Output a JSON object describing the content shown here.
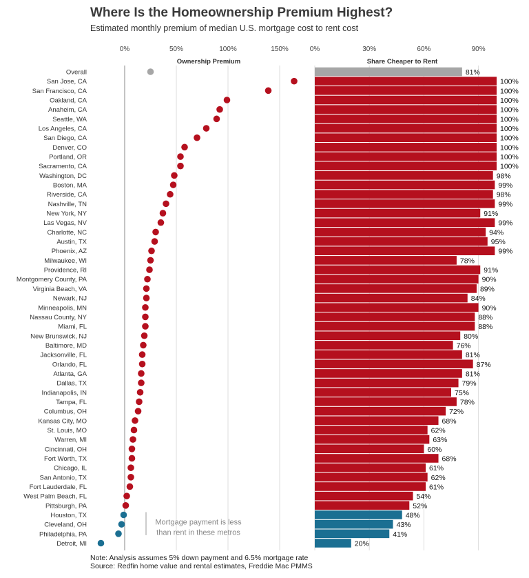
{
  "header": {
    "title": "Where Is the Homeownership Premium Highest?",
    "subtitle": "Estimated monthly premium of median U.S. mortgage cost to rent cost"
  },
  "footer": {
    "note": "Note: Analysis assumes 5% down payment and 6.5% mortgage rate",
    "source": "Source: Redfin home value and rental estimates, Freddie Mac PMMS"
  },
  "annotation": {
    "line1": "Mortgage payment is less",
    "line2": "than rent in these metros"
  },
  "colors": {
    "red": "#b5101e",
    "blue": "#1b6f92",
    "gray": "#a6a6a6"
  },
  "chart_data": [
    {
      "type": "scatter",
      "title": "Ownership Premium",
      "x_ticks": [
        "0%",
        "50%",
        "100%",
        "150%"
      ],
      "xlim": [
        0,
        160
      ],
      "unit": "percent",
      "categories": [
        "Overall",
        "San Jose, CA",
        "San Francisco, CA",
        "Oakland, CA",
        "Anaheim, CA",
        "Seattle, WA",
        "Los Angeles, CA",
        "San Diego, CA",
        "Denver, CO",
        "Portland, OR",
        "Sacramento, CA",
        "Washington, DC",
        "Boston, MA",
        "Riverside, CA",
        "Nashville, TN",
        "New York, NY",
        "Las Vegas, NV",
        "Charlotte, NC",
        "Austin, TX",
        "Phoenix, AZ",
        "Milwaukee, WI",
        "Providence, RI",
        "Montgomery County, PA",
        "Virginia Beach, VA",
        "Newark, NJ",
        "Minneapolis, MN",
        "Nassau County, NY",
        "Miami, FL",
        "New Brunswick, NJ",
        "Baltimore, MD",
        "Jacksonville, FL",
        "Orlando, FL",
        "Atlanta, GA",
        "Dallas, TX",
        "Indianapolis, IN",
        "Tampa, FL",
        "Columbus, OH",
        "Kansas City, MO",
        "St. Louis, MO",
        "Warren, MI",
        "Cincinnati, OH",
        "Fort Worth, TX",
        "Chicago, IL",
        "San Antonio, TX",
        "Fort Lauderdale, FL",
        "West Palm Beach, FL",
        "Pittsburgh, PA",
        "Houston, TX",
        "Cleveland, OH",
        "Philadelphia, PA",
        "Detroit, MI"
      ],
      "values": [
        25,
        164,
        139,
        99,
        92,
        89,
        79,
        70,
        58,
        54,
        54,
        48,
        47,
        44,
        40,
        37,
        35,
        30,
        29,
        26,
        25,
        24,
        22,
        21,
        21,
        20,
        20,
        20,
        19,
        18,
        17,
        17,
        16,
        16,
        15,
        14,
        13,
        10,
        9,
        8,
        7,
        7,
        6,
        6,
        5,
        2,
        1,
        -1,
        -3,
        -6,
        -23
      ]
    },
    {
      "type": "bar",
      "title": "Share Cheaper to Rent",
      "x_ticks": [
        "0%",
        "30%",
        "60%",
        "90%"
      ],
      "xlim": [
        0,
        100
      ],
      "unit": "percent",
      "categories": [
        "Overall",
        "San Jose, CA",
        "San Francisco, CA",
        "Oakland, CA",
        "Anaheim, CA",
        "Seattle, WA",
        "Los Angeles, CA",
        "San Diego, CA",
        "Denver, CO",
        "Portland, OR",
        "Sacramento, CA",
        "Washington, DC",
        "Boston, MA",
        "Riverside, CA",
        "Nashville, TN",
        "New York, NY",
        "Las Vegas, NV",
        "Charlotte, NC",
        "Austin, TX",
        "Phoenix, AZ",
        "Milwaukee, WI",
        "Providence, RI",
        "Montgomery County, PA",
        "Virginia Beach, VA",
        "Newark, NJ",
        "Minneapolis, MN",
        "Nassau County, NY",
        "Miami, FL",
        "New Brunswick, NJ",
        "Baltimore, MD",
        "Jacksonville, FL",
        "Orlando, FL",
        "Atlanta, GA",
        "Dallas, TX",
        "Indianapolis, IN",
        "Tampa, FL",
        "Columbus, OH",
        "Kansas City, MO",
        "St. Louis, MO",
        "Warren, MI",
        "Cincinnati, OH",
        "Fort Worth, TX",
        "Chicago, IL",
        "San Antonio, TX",
        "Fort Lauderdale, FL",
        "West Palm Beach, FL",
        "Pittsburgh, PA",
        "Houston, TX",
        "Cleveland, OH",
        "Philadelphia, PA",
        "Detroit, MI"
      ],
      "values": [
        81,
        100,
        100,
        100,
        100,
        100,
        100,
        100,
        100,
        100,
        100,
        98,
        99,
        98,
        99,
        91,
        99,
        94,
        95,
        99,
        78,
        91,
        90,
        89,
        84,
        90,
        88,
        88,
        80,
        76,
        81,
        87,
        81,
        79,
        75,
        78,
        72,
        68,
        62,
        63,
        60,
        68,
        61,
        62,
        61,
        54,
        52,
        48,
        43,
        41,
        20
      ],
      "labels": [
        "81%",
        "100%",
        "100%",
        "100%",
        "100%",
        "100%",
        "100%",
        "100%",
        "100%",
        "100%",
        "100%",
        "98%",
        "99%",
        "98%",
        "99%",
        "91%",
        "99%",
        "94%",
        "95%",
        "99%",
        "78%",
        "91%",
        "90%",
        "89%",
        "84%",
        "90%",
        "88%",
        "88%",
        "80%",
        "76%",
        "81%",
        "87%",
        "81%",
        "79%",
        "75%",
        "78%",
        "72%",
        "68%",
        "62%",
        "63%",
        "60%",
        "68%",
        "61%",
        "62%",
        "61%",
        "54%",
        "52%",
        "48%",
        "43%",
        "41%",
        "20%"
      ]
    }
  ]
}
